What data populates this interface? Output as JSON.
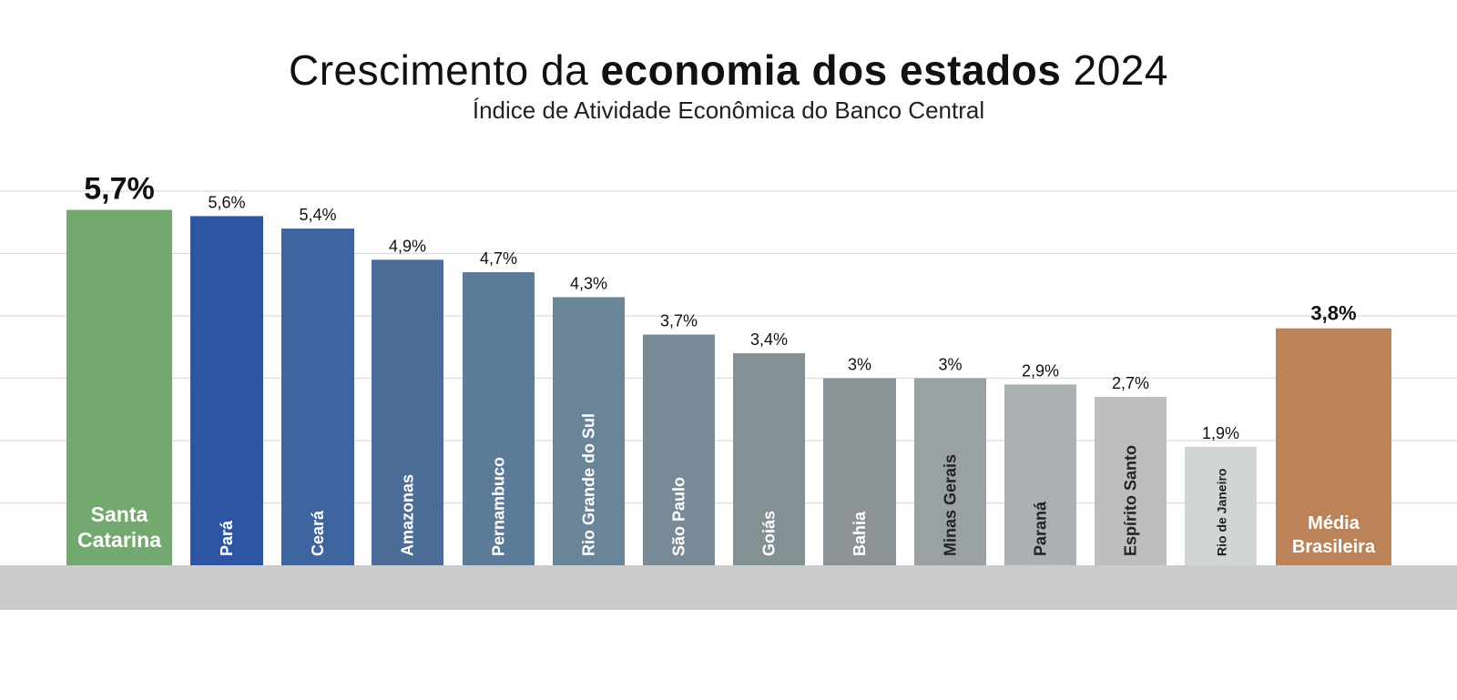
{
  "chart_data": {
    "type": "bar",
    "title": {
      "part1": "Crescimento da ",
      "bold": "economia dos estados",
      "part2": " 2024"
    },
    "subtitle": "Índice de Atividade Econômica do Banco Central",
    "xlabel": "",
    "ylabel": "",
    "ylim": [
      0,
      6.0
    ],
    "grid": true,
    "categories": [
      "Santa Catarina",
      "Pará",
      "Ceará",
      "Amazonas",
      "Pernambuco",
      "Rio Grande do Sul",
      "São Paulo",
      "Goiás",
      "Bahia",
      "Minas Gerais",
      "Paraná",
      "Espírito Santo",
      "Rio de Janeiro",
      "Média Brasileira"
    ],
    "values": [
      5.7,
      5.6,
      5.4,
      4.9,
      4.7,
      4.3,
      3.7,
      3.4,
      3.0,
      3.0,
      2.9,
      2.7,
      1.9,
      3.8
    ],
    "value_labels": [
      "5,7%",
      "5,6%",
      "5,4%",
      "4,9%",
      "4,7%",
      "4,3%",
      "3,7%",
      "3,4%",
      "3%",
      "3%",
      "2,9%",
      "2,7%",
      "1,9%",
      "3,8%"
    ],
    "label_orientation": [
      "horizontal",
      "vertical",
      "vertical",
      "vertical",
      "vertical",
      "vertical",
      "vertical",
      "vertical",
      "vertical",
      "vertical",
      "vertical",
      "vertical",
      "vertical",
      "horizontal"
    ],
    "highlight": [
      "primary",
      "normal",
      "normal",
      "normal",
      "normal",
      "normal",
      "normal",
      "normal",
      "normal",
      "normal",
      "normal",
      "normal",
      "normal",
      "secondary"
    ],
    "colors": [
      "#73a86f",
      "#2d55a4",
      "#3f65a0",
      "#4b6d98",
      "#5b7b99",
      "#6b8598",
      "#778a96",
      "#839195",
      "#8c9396",
      "#9aa1a2",
      "#abb1b2",
      "#bcbebe",
      "#d2d5d6",
      "#bd8358"
    ],
    "label_colors": [
      "#ffffff",
      "#ffffff",
      "#ffffff",
      "#ffffff",
      "#ffffff",
      "#ffffff",
      "#ffffff",
      "#ffffff",
      "#ffffff",
      "#222222",
      "#222222",
      "#222222",
      "#222222",
      "#ffffff"
    ],
    "grid_color": "#dcdcdc",
    "base_color": "#cbcbcb"
  }
}
